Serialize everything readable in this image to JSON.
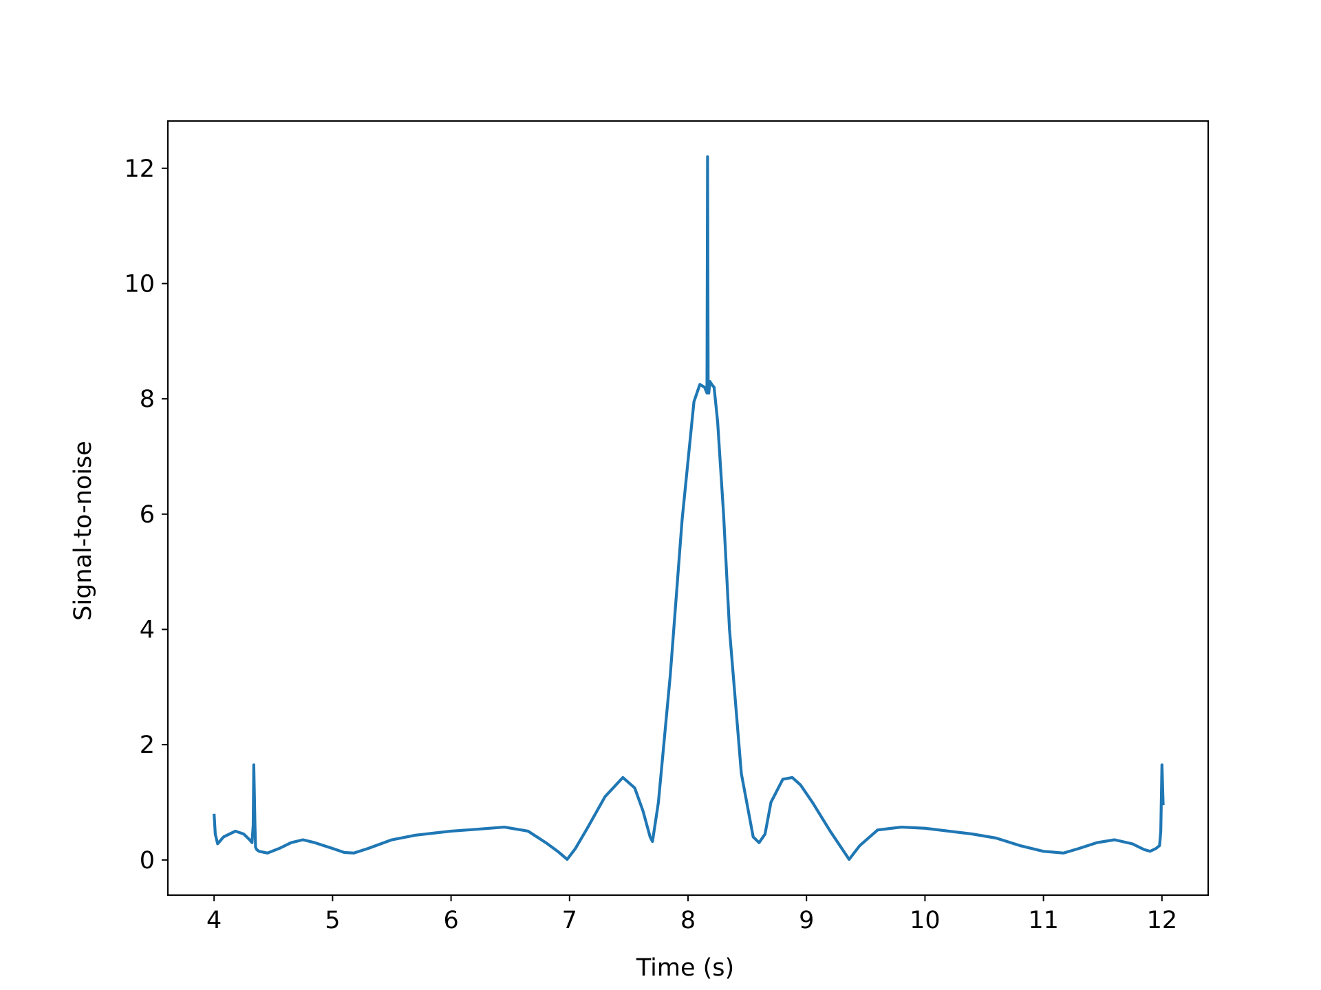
{
  "chart_data": {
    "type": "line",
    "title": "",
    "xlabel": "Time (s)",
    "ylabel": "Signal-to-noise",
    "xlim": [
      3.61,
      12.39
    ],
    "ylim": [
      -0.61,
      12.82
    ],
    "xticks": [
      4,
      5,
      6,
      7,
      8,
      9,
      10,
      11,
      12
    ],
    "yticks": [
      0,
      2,
      4,
      6,
      8,
      10,
      12
    ],
    "grid": false,
    "legend": "none",
    "series": [
      {
        "color": "#1f77b4",
        "x": [
          4.0,
          4.01,
          4.03,
          4.08,
          4.18,
          4.25,
          4.3,
          4.32,
          4.33,
          4.335,
          4.345,
          4.35,
          4.36,
          4.38,
          4.45,
          4.55,
          4.65,
          4.75,
          4.85,
          5.0,
          5.1,
          5.18,
          5.3,
          5.5,
          5.7,
          6.0,
          6.2,
          6.45,
          6.65,
          6.8,
          6.9,
          6.98,
          7.05,
          7.15,
          7.3,
          7.45,
          7.55,
          7.62,
          7.68,
          7.7,
          7.75,
          7.85,
          7.95,
          8.05,
          8.1,
          8.14,
          8.16,
          8.165,
          8.17,
          8.175,
          8.18,
          8.185,
          8.2,
          8.22,
          8.25,
          8.3,
          8.35,
          8.45,
          8.55,
          8.6,
          8.65,
          8.7,
          8.8,
          8.88,
          8.95,
          9.05,
          9.2,
          9.36,
          9.45,
          9.6,
          9.8,
          10.0,
          10.2,
          10.4,
          10.6,
          10.8,
          11.0,
          11.17,
          11.3,
          11.45,
          11.6,
          11.75,
          11.85,
          11.9,
          11.95,
          11.98,
          11.99,
          12.0,
          12.01
        ],
        "y": [
          0.8,
          0.45,
          0.28,
          0.4,
          0.5,
          0.45,
          0.35,
          0.3,
          0.6,
          1.65,
          0.6,
          0.22,
          0.18,
          0.15,
          0.12,
          0.2,
          0.3,
          0.35,
          0.3,
          0.2,
          0.13,
          0.12,
          0.2,
          0.35,
          0.43,
          0.5,
          0.53,
          0.57,
          0.5,
          0.3,
          0.15,
          0.01,
          0.2,
          0.55,
          1.1,
          1.43,
          1.25,
          0.85,
          0.4,
          0.32,
          1.0,
          3.2,
          5.9,
          7.95,
          8.25,
          8.2,
          8.1,
          12.2,
          8.15,
          8.1,
          8.2,
          8.3,
          8.25,
          8.2,
          7.6,
          6.0,
          4.0,
          1.5,
          0.4,
          0.3,
          0.45,
          1.0,
          1.4,
          1.43,
          1.3,
          1.0,
          0.5,
          0.01,
          0.25,
          0.52,
          0.57,
          0.55,
          0.5,
          0.45,
          0.38,
          0.25,
          0.15,
          0.12,
          0.2,
          0.3,
          0.35,
          0.28,
          0.18,
          0.15,
          0.2,
          0.25,
          0.5,
          1.65,
          0.95
        ]
      }
    ]
  }
}
